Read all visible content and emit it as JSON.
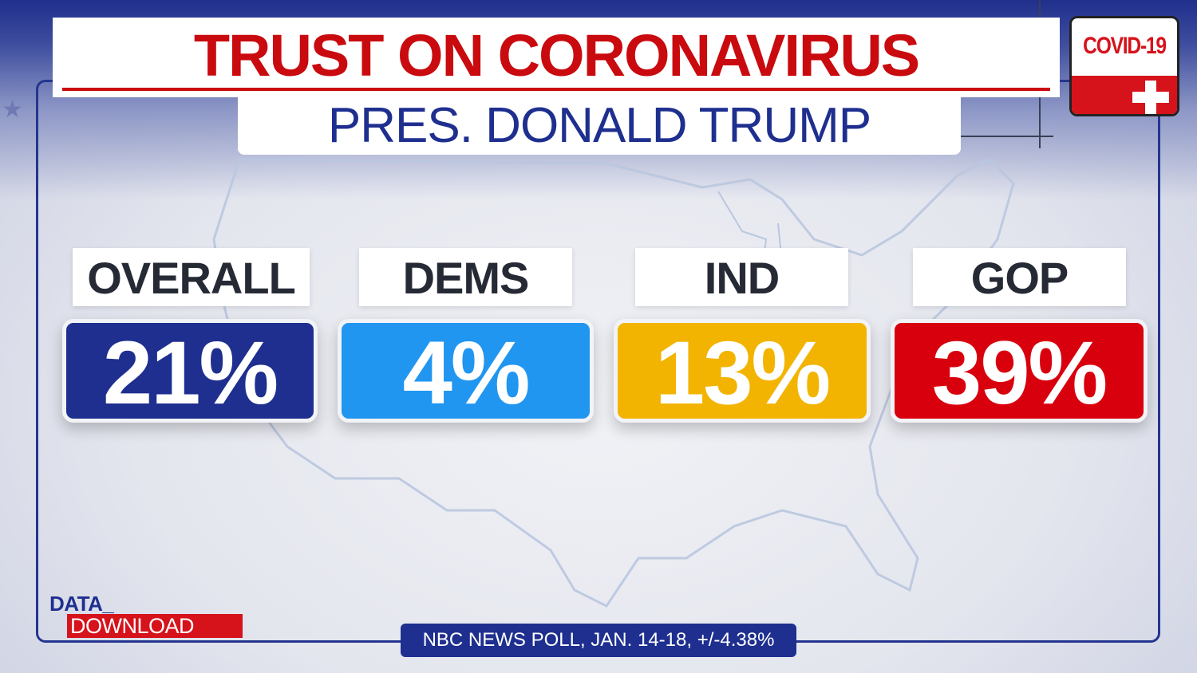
{
  "title": "TRUST ON CORONAVIRUS",
  "subtitle": "PRES. DONALD TRUMP",
  "badge": {
    "label": "COVID-19",
    "icon": "red-cross-icon"
  },
  "source": "NBC NEWS POLL, JAN. 14-18, +/-4.38%",
  "logo": {
    "line1": "DATA_",
    "line2": "DOWNLOAD"
  },
  "colors": {
    "title_red": "#c90a0e",
    "navy": "#1e2f8f",
    "overall": "#1e2f8f",
    "dems": "#2196f0",
    "ind": "#f2b400",
    "gop": "#d8000d"
  },
  "chart_data": {
    "type": "table",
    "title": "TRUST ON CORONAVIRUS",
    "subtitle": "PRES. DONALD TRUMP",
    "categories": [
      "OVERALL",
      "DEMS",
      "IND",
      "GOP"
    ],
    "values": [
      21,
      4,
      13,
      39
    ],
    "value_labels": [
      "21%",
      "4%",
      "13%",
      "39%"
    ],
    "unit": "%"
  }
}
